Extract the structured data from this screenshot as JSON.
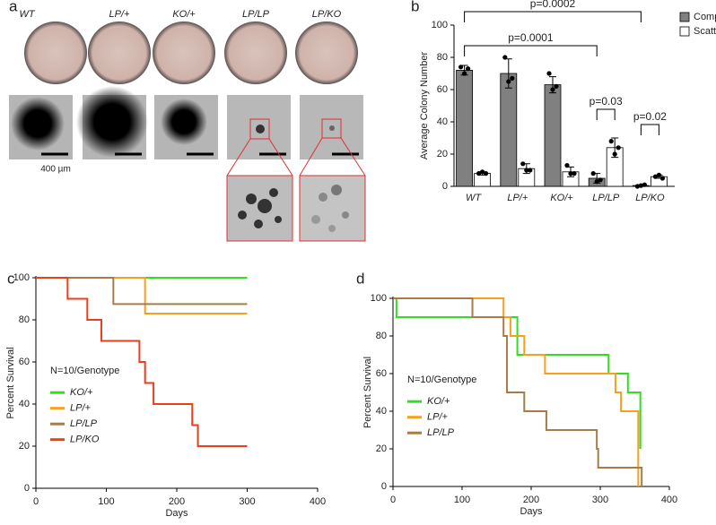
{
  "panel_labels": [
    "a",
    "b",
    "c",
    "d"
  ],
  "panel_a": {
    "genotypes": [
      "WT",
      "LP/+",
      "KO/+",
      "LP/LP",
      "LP/KO"
    ],
    "scale_bar": "400 µm"
  },
  "chart_data": [
    {
      "type": "bar",
      "ylabel": "Average Colony Number",
      "categories": [
        "WT",
        "LP/+",
        "KO/+",
        "LP/LP",
        "LP/KO"
      ],
      "series": [
        {
          "name": "Compact",
          "color": "#808080",
          "values": [
            72,
            70,
            63,
            5,
            0.5
          ],
          "errors": [
            3,
            9,
            5,
            3,
            0.5
          ],
          "points": [
            [
              74,
              70,
              73
            ],
            [
              80,
              65,
              67
            ],
            [
              70,
              60,
              62
            ],
            [
              8,
              3,
              4
            ],
            [
              0,
              0.5,
              1
            ]
          ]
        },
        {
          "name": "Scattered",
          "color": "#ffffff",
          "values": [
            8,
            11,
            9,
            24,
            6
          ],
          "errors": [
            1,
            3,
            3,
            6,
            1
          ],
          "points": [
            [
              8,
              9,
              8
            ],
            [
              14,
              10,
              10
            ],
            [
              13,
              8,
              8
            ],
            [
              28,
              20,
              24
            ],
            [
              6,
              7,
              5
            ]
          ]
        }
      ],
      "ylim": [
        0,
        100
      ],
      "yticks": [
        0,
        20,
        40,
        60,
        80,
        100
      ],
      "legend": "top-right",
      "annotations": [
        "p=0.0002",
        "p=0.0001",
        "p=0.03",
        "p=0.02"
      ]
    },
    {
      "type": "line",
      "step": true,
      "xlabel": "Days",
      "ylabel": "Percent Survival",
      "annotation": "N=10/Genotype",
      "xlim": [
        0,
        400
      ],
      "xticks": [
        0,
        100,
        200,
        300,
        400
      ],
      "ylim": [
        0,
        100
      ],
      "yticks": [
        0,
        20,
        40,
        60,
        80,
        100
      ],
      "legend": "left",
      "series": [
        {
          "name": "KO/+",
          "color": "#33dd22",
          "x": [
            0,
            300
          ],
          "values": [
            100,
            100
          ]
        },
        {
          "name": "LP/+",
          "color": "#f5a020",
          "x": [
            0,
            155,
            300
          ],
          "values": [
            100,
            83,
            83
          ]
        },
        {
          "name": "LP/LP",
          "color": "#a87c4a",
          "x": [
            0,
            110,
            300
          ],
          "values": [
            100,
            87.5,
            87.5
          ]
        },
        {
          "name": "LP/KO",
          "color": "#e8401c",
          "x": [
            0,
            45,
            73,
            93,
            147,
            155,
            167,
            222,
            230,
            300
          ],
          "values": [
            100,
            90,
            80,
            70,
            60,
            50,
            40,
            30,
            20,
            20
          ]
        }
      ]
    },
    {
      "type": "line",
      "step": true,
      "xlabel": "Days",
      "ylabel": "Percent Survival",
      "annotation": "N=10/Genotype",
      "xlim": [
        0,
        400
      ],
      "xticks": [
        0,
        100,
        200,
        300,
        400
      ],
      "ylim": [
        0,
        100
      ],
      "yticks": [
        0,
        20,
        40,
        60,
        80,
        100
      ],
      "legend": "left",
      "series": [
        {
          "name": "KO/+",
          "color": "#33dd22",
          "x": [
            0,
            5,
            180,
            312,
            340,
            358
          ],
          "values": [
            100,
            90,
            70,
            60,
            50,
            20
          ]
        },
        {
          "name": "LP/+",
          "color": "#f5a020",
          "x": [
            0,
            160,
            170,
            190,
            220,
            322,
            330,
            355
          ],
          "values": [
            100,
            90,
            80,
            70,
            60,
            50,
            40,
            0
          ]
        },
        {
          "name": "LP/LP",
          "color": "#a87c4a",
          "x": [
            0,
            115,
            160,
            165,
            190,
            222,
            295,
            297,
            360
          ],
          "values": [
            100,
            90,
            80,
            50,
            40,
            30,
            20,
            10,
            0
          ]
        }
      ]
    }
  ]
}
